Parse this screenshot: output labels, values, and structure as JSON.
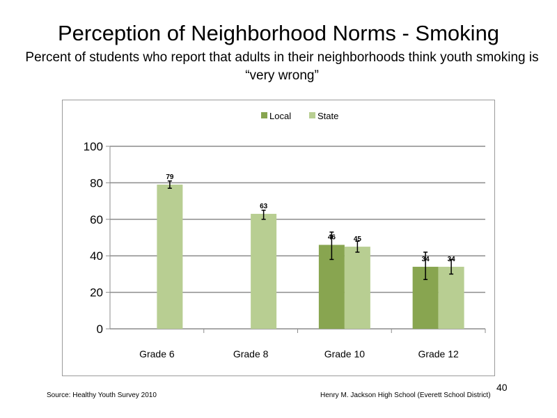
{
  "slide": {
    "title": "Perception  of Neighborhood  Norms - Smoking",
    "subtitle": "Percent of students who report that adults in their neighborhoods think youth smoking is “very wrong”",
    "source": "Source: Healthy Youth Survey 2010",
    "school": "Henry M. Jackson High School (Everett School District)",
    "page_number": "40"
  },
  "chart_data": {
    "type": "bar",
    "title": "",
    "xlabel": "",
    "ylabel": "",
    "categories": [
      "Grade 6",
      "Grade 8",
      "Grade 10",
      "Grade 12"
    ],
    "ylim": [
      0,
      100
    ],
    "yticks": [
      0,
      20,
      40,
      60,
      80,
      100
    ],
    "grid": true,
    "legend_position": "top-center",
    "series": [
      {
        "name": "Local",
        "color": "#88a550",
        "values": [
          null,
          null,
          46,
          34
        ],
        "error_low": [
          null,
          null,
          38,
          27
        ],
        "error_high": [
          null,
          null,
          53,
          42
        ]
      },
      {
        "name": "State",
        "color": "#b8ce92",
        "values": [
          79,
          63,
          45,
          34
        ],
        "error_low": [
          77,
          60,
          42,
          30
        ],
        "error_high": [
          81,
          65,
          48,
          38
        ]
      }
    ]
  }
}
